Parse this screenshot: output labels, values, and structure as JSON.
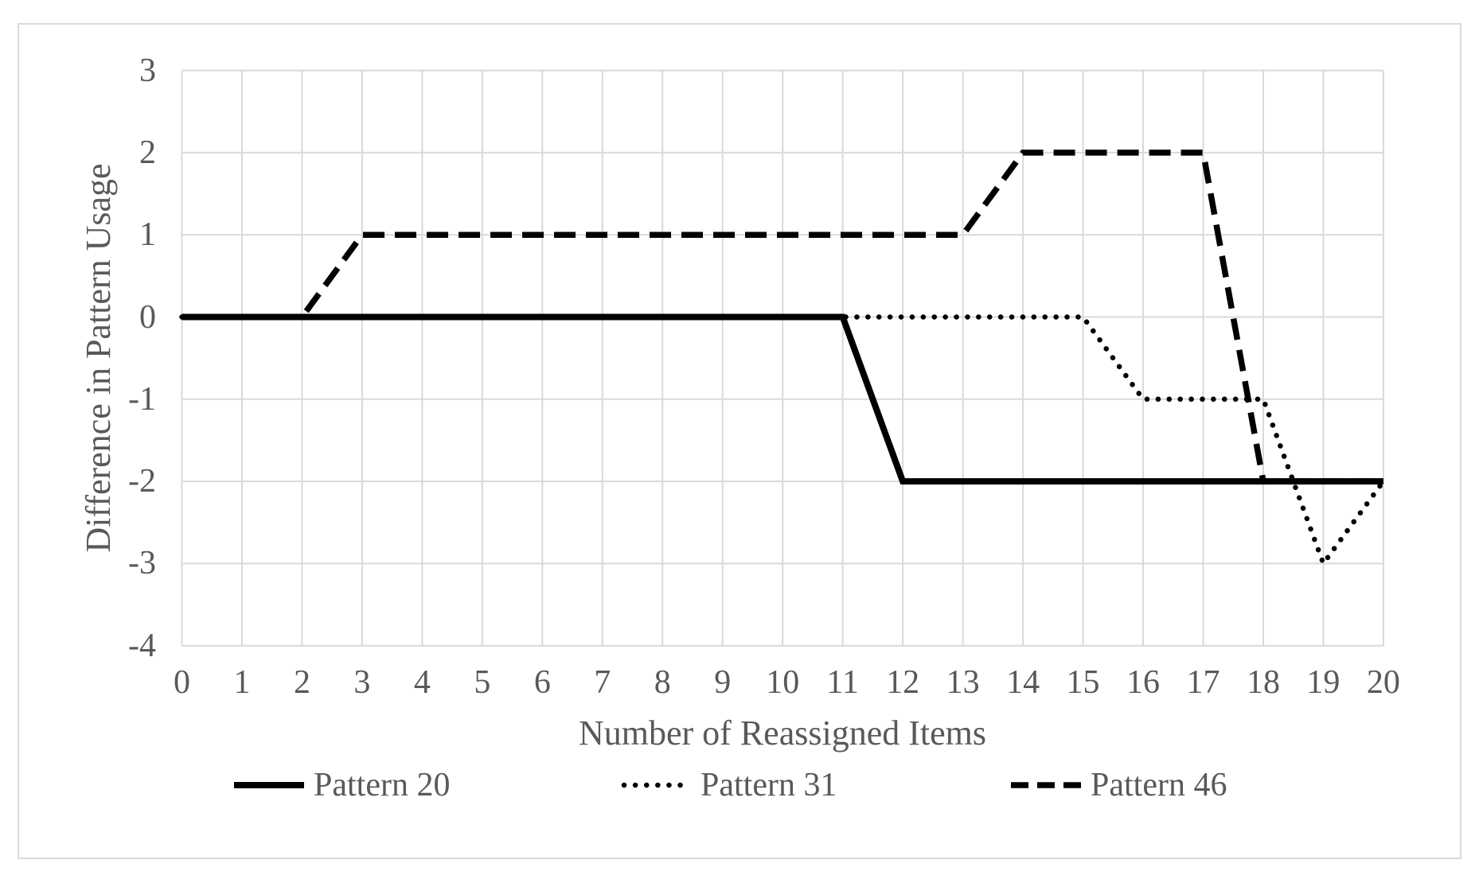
{
  "chart_data": {
    "type": "line",
    "title": "",
    "xlabel": "Number of Reassigned Items",
    "ylabel": "Difference in Pattern Usage",
    "x": [
      0,
      1,
      2,
      3,
      4,
      5,
      6,
      7,
      8,
      9,
      10,
      11,
      12,
      13,
      14,
      15,
      16,
      17,
      18,
      19,
      20
    ],
    "x_tick_labels": [
      "0",
      "1",
      "2",
      "3",
      "4",
      "5",
      "6",
      "7",
      "8",
      "9",
      "10",
      "11",
      "12",
      "13",
      "14",
      "15",
      "16",
      "17",
      "18",
      "19",
      "20"
    ],
    "y_tick_labels": [
      "3",
      "2",
      "1",
      "0",
      "-1",
      "-2",
      "-3",
      "-4"
    ],
    "y_ticks": [
      3,
      2,
      1,
      0,
      -1,
      -2,
      -3,
      -4
    ],
    "xlim": [
      0,
      20
    ],
    "ylim": [
      -4,
      3
    ],
    "grid": true,
    "legend_position": "bottom",
    "series": [
      {
        "name": "Pattern 20",
        "line_style": "solid",
        "color": "#000000",
        "values": [
          0,
          0,
          0,
          0,
          0,
          0,
          0,
          0,
          0,
          0,
          0,
          0,
          -2,
          -2,
          -2,
          -2,
          -2,
          -2,
          -2,
          -2,
          -2
        ]
      },
      {
        "name": "Pattern 31",
        "line_style": "dotted",
        "color": "#000000",
        "values": [
          0,
          0,
          0,
          0,
          0,
          0,
          0,
          0,
          0,
          0,
          0,
          0,
          0,
          0,
          0,
          0,
          -1,
          -1,
          -1,
          -3,
          -2
        ]
      },
      {
        "name": "Pattern 46",
        "line_style": "dashed",
        "color": "#000000",
        "values": [
          0,
          0,
          0,
          1,
          1,
          1,
          1,
          1,
          1,
          1,
          1,
          1,
          1,
          1,
          2,
          2,
          2,
          2,
          -2,
          -2,
          -2
        ]
      }
    ],
    "colors": {
      "line": "#000000",
      "grid": "#D9D9D9",
      "text": "#595959",
      "border": "#D9D9D9",
      "background": "#FFFFFF"
    }
  }
}
